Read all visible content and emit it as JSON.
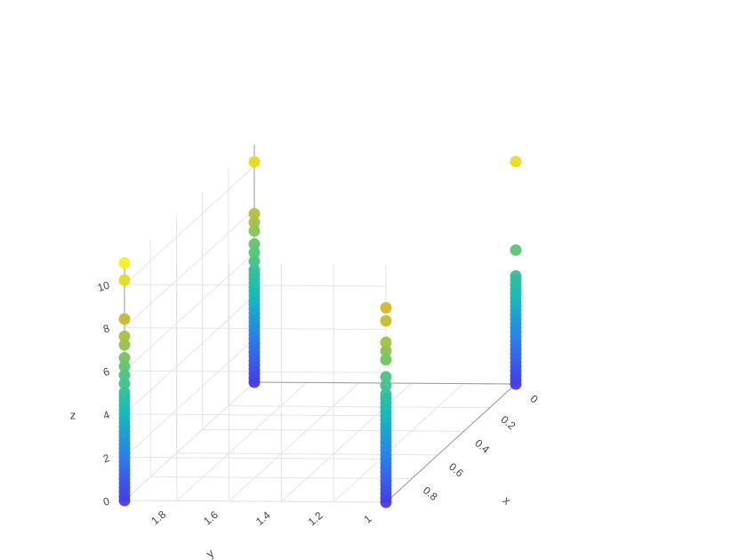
{
  "chart_data": {
    "type": "scatter3d",
    "axes": {
      "x": {
        "title": "x",
        "range": [
          0,
          1
        ],
        "tickvals": [
          0,
          0.2,
          0.4,
          0.6,
          0.8
        ],
        "ticktext": [
          "0",
          "0.2",
          "0.4",
          "0.6",
          "0.8"
        ]
      },
      "y": {
        "title": "y",
        "range": [
          1,
          2
        ],
        "tickvals": [
          1,
          1.2,
          1.4,
          1.6,
          1.8
        ],
        "ticktext": [
          "1",
          "1.2",
          "1.4",
          "1.6",
          "1.8"
        ]
      },
      "z": {
        "title": "z",
        "range": [
          0,
          11
        ],
        "tickvals": [
          0,
          2,
          4,
          6,
          8,
          10
        ],
        "ticktext": [
          "0",
          "2",
          "4",
          "6",
          "8",
          "10"
        ]
      }
    },
    "colorscale": {
      "name": "Plasma-like",
      "cmin": 0,
      "cmax": 11
    },
    "grid": true,
    "legend": false,
    "columns": [
      {
        "x": 0,
        "y": 1,
        "z": [
          0,
          0.2,
          0.4,
          0.6,
          0.8,
          1.0,
          1.2,
          1.4,
          1.6,
          1.8,
          2.0,
          2.2,
          2.4,
          2.6,
          2.8,
          3.0,
          3.2,
          3.4,
          3.6,
          3.8,
          4.0,
          4.2,
          4.4,
          4.6,
          4.8,
          5.0,
          6.2,
          10.3
        ]
      },
      {
        "x": 1,
        "y": 1,
        "z": [
          0,
          0.2,
          0.4,
          0.6,
          0.8,
          1.0,
          1.2,
          1.4,
          1.6,
          1.8,
          2.0,
          2.2,
          2.4,
          2.6,
          2.8,
          3.0,
          3.2,
          3.4,
          3.6,
          3.8,
          4.0,
          4.2,
          4.4,
          4.6,
          4.8,
          5.0,
          5.4,
          5.8,
          6.6,
          7.0,
          7.4,
          8.4,
          9.0
        ]
      },
      {
        "x": 0,
        "y": 2,
        "z": [
          0,
          0.2,
          0.4,
          0.6,
          0.8,
          1.0,
          1.2,
          1.4,
          1.6,
          1.8,
          2.0,
          2.2,
          2.4,
          2.6,
          2.8,
          3.0,
          3.2,
          3.4,
          3.6,
          3.8,
          4.0,
          4.2,
          4.4,
          4.6,
          4.8,
          5.0,
          5.2,
          5.6,
          6.0,
          6.4,
          7.0,
          7.4,
          7.8,
          10.2
        ]
      },
      {
        "x": 1,
        "y": 2,
        "z": [
          0,
          0.2,
          0.4,
          0.6,
          0.8,
          1.0,
          1.2,
          1.4,
          1.6,
          1.8,
          2.0,
          2.2,
          2.4,
          2.6,
          2.8,
          3.0,
          3.2,
          3.4,
          3.6,
          3.8,
          4.0,
          4.2,
          4.4,
          4.6,
          4.8,
          5.0,
          5.4,
          5.8,
          6.2,
          6.6,
          7.2,
          7.6,
          8.4,
          10.2,
          11.0
        ]
      }
    ]
  }
}
